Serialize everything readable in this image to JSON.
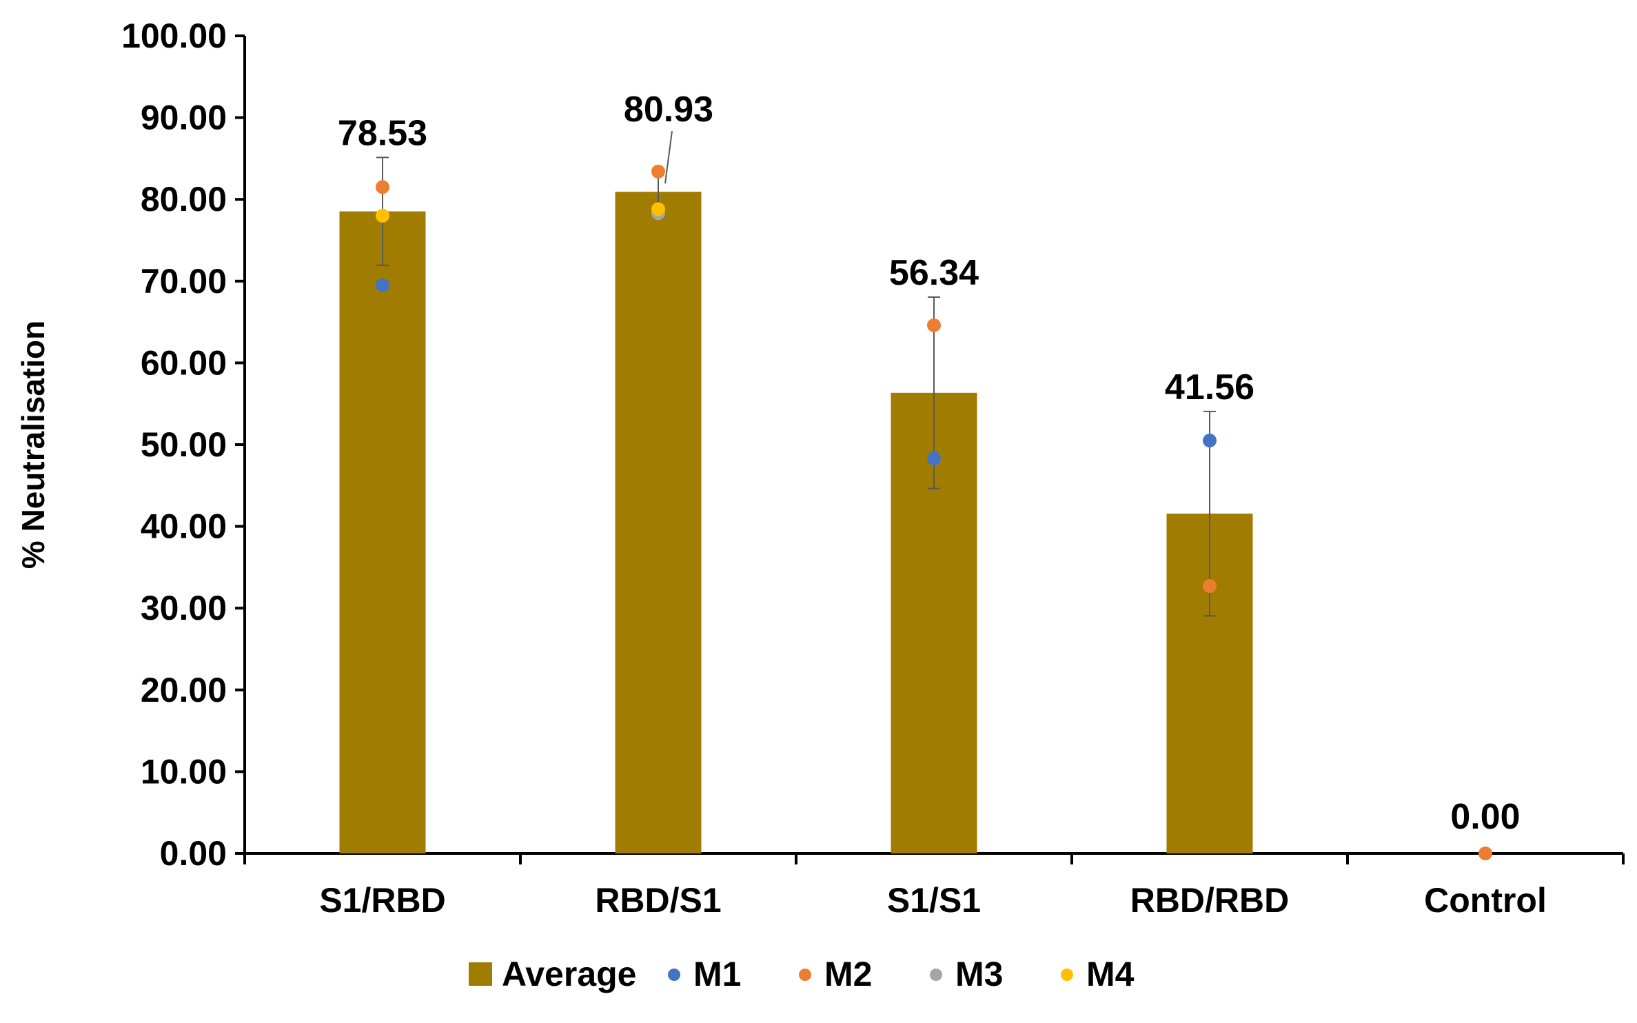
{
  "chart_data": {
    "type": "bar",
    "title": "",
    "xlabel": "",
    "ylabel": "% Neutralisation",
    "ylim": [
      0,
      100
    ],
    "yticks": [
      "0.00",
      "10.00",
      "20.00",
      "30.00",
      "40.00",
      "50.00",
      "60.00",
      "70.00",
      "80.00",
      "90.00",
      "100.00"
    ],
    "categories": [
      "S1/RBD",
      "RBD/S1",
      "S1/S1",
      "RBD/RBD",
      "Control"
    ],
    "bar_series": {
      "name": "Average",
      "color": "#A07C00",
      "values": [
        78.53,
        80.93,
        56.34,
        41.56,
        0.0
      ],
      "labels": [
        "78.53",
        "80.93",
        "56.34",
        "41.56",
        "0.00"
      ],
      "error": [
        6.6,
        2.4,
        11.7,
        12.5,
        0.0
      ]
    },
    "point_series": [
      {
        "name": "M1",
        "color": "#4472C4",
        "values": [
          69.5,
          null,
          48.3,
          50.5,
          null
        ]
      },
      {
        "name": "M2",
        "color": "#ED7D31",
        "values": [
          81.5,
          83.4,
          64.6,
          32.7,
          0.0
        ]
      },
      {
        "name": "M3",
        "color": "#A5A5A5",
        "values": [
          null,
          78.3,
          null,
          null,
          null
        ]
      },
      {
        "name": "M4",
        "color": "#FFC000",
        "values": [
          78.0,
          78.8,
          null,
          null,
          null
        ]
      }
    ],
    "grid": false,
    "legend_position": "bottom"
  }
}
